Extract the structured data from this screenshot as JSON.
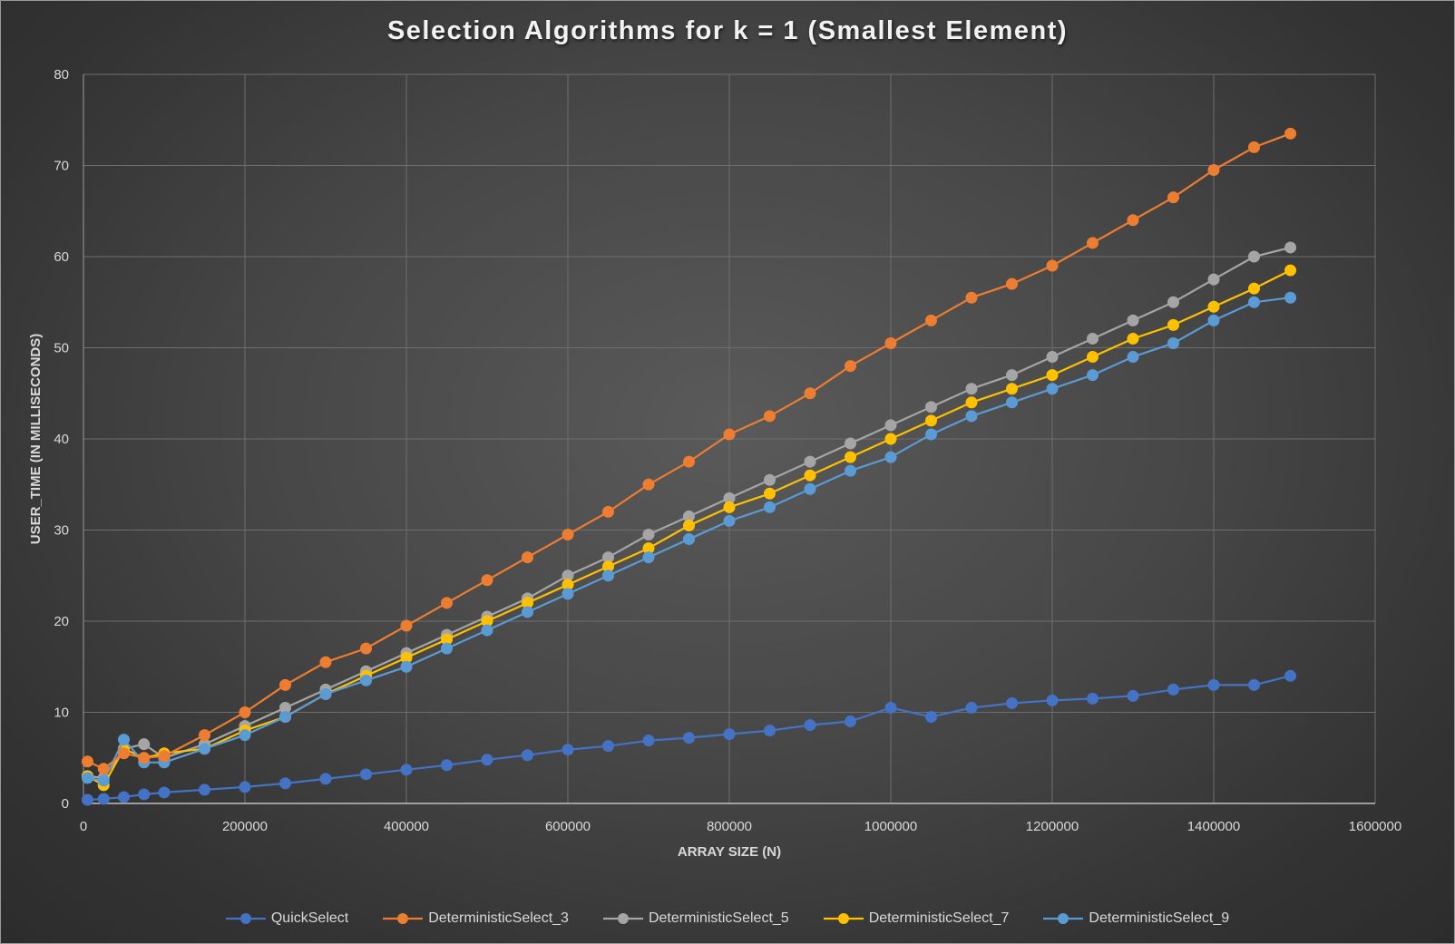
{
  "chart_data": {
    "type": "line",
    "title": "Selection Algorithms for k = 1 (Smallest Element)",
    "xlabel": "ARRAY SIZE (N)",
    "ylabel": "USER_TIME (IN MILLISECONDS)",
    "xlim": [
      0,
      1600000
    ],
    "ylim": [
      0,
      80
    ],
    "x_ticks": [
      "0",
      "200000",
      "400000",
      "600000",
      "800000",
      "1000000",
      "1200000",
      "1400000",
      "1600000"
    ],
    "y_ticks": [
      "0",
      "10",
      "20",
      "30",
      "40",
      "50",
      "60",
      "70",
      "80"
    ],
    "grid": true,
    "legend_position": "bottom",
    "markers": true,
    "x": [
      5000,
      25000,
      50000,
      75000,
      100000,
      150000,
      200000,
      250000,
      300000,
      350000,
      400000,
      450000,
      500000,
      550000,
      600000,
      650000,
      700000,
      750000,
      800000,
      850000,
      900000,
      950000,
      1000000,
      1050000,
      1100000,
      1150000,
      1200000,
      1250000,
      1300000,
      1350000,
      1400000,
      1450000,
      1495000
    ],
    "series": [
      {
        "name": "QuickSelect",
        "color": "#4472C4",
        "values": [
          0.4,
          0.5,
          0.7,
          1.0,
          1.2,
          1.5,
          1.8,
          2.2,
          2.7,
          3.2,
          3.7,
          4.2,
          4.8,
          5.3,
          5.9,
          6.3,
          6.9,
          7.2,
          7.6,
          8.0,
          8.6,
          9.0,
          10.5,
          9.5,
          10.5,
          11.0,
          11.3,
          11.5,
          11.8,
          12.5,
          13.0,
          13.0,
          14.0
        ]
      },
      {
        "name": "DeterministicSelect_3",
        "color": "#ED7D31",
        "values": [
          4.6,
          3.8,
          5.5,
          5.0,
          5.2,
          7.5,
          10.0,
          13.0,
          15.5,
          17.0,
          19.5,
          22.0,
          24.5,
          27.0,
          29.5,
          32.0,
          35.0,
          37.5,
          40.5,
          42.5,
          45.0,
          48.0,
          50.5,
          53.0,
          55.5,
          57.0,
          59.0,
          61.5,
          64.0,
          66.5,
          69.5,
          72.0,
          73.5
        ]
      },
      {
        "name": "DeterministicSelect_5",
        "color": "#A5A5A5",
        "values": [
          3.0,
          2.8,
          6.0,
          6.5,
          5.0,
          6.5,
          8.5,
          10.5,
          12.5,
          14.5,
          16.5,
          18.5,
          20.5,
          22.5,
          25.0,
          27.0,
          29.5,
          31.5,
          33.5,
          35.5,
          37.5,
          39.5,
          41.5,
          43.5,
          45.5,
          47.0,
          49.0,
          51.0,
          53.0,
          55.0,
          57.5,
          60.0,
          61.0
        ]
      },
      {
        "name": "DeterministicSelect_7",
        "color": "#FFC000",
        "values": [
          3.0,
          2.0,
          6.0,
          5.0,
          5.5,
          6.0,
          8.0,
          9.5,
          12.0,
          14.0,
          16.0,
          18.0,
          20.0,
          22.0,
          24.0,
          26.0,
          28.0,
          30.5,
          32.5,
          34.0,
          36.0,
          38.0,
          40.0,
          42.0,
          44.0,
          45.5,
          47.0,
          49.0,
          51.0,
          52.5,
          54.5,
          56.5,
          58.5
        ]
      },
      {
        "name": "DeterministicSelect_9",
        "color": "#5B9BD5",
        "values": [
          2.8,
          2.5,
          7.0,
          4.5,
          4.5,
          6.0,
          7.5,
          9.5,
          12.0,
          13.5,
          15.0,
          17.0,
          19.0,
          21.0,
          23.0,
          25.0,
          27.0,
          29.0,
          31.0,
          32.5,
          34.5,
          36.5,
          38.0,
          40.5,
          42.5,
          44.0,
          45.5,
          47.0,
          49.0,
          50.5,
          53.0,
          55.0,
          55.5
        ]
      }
    ]
  }
}
